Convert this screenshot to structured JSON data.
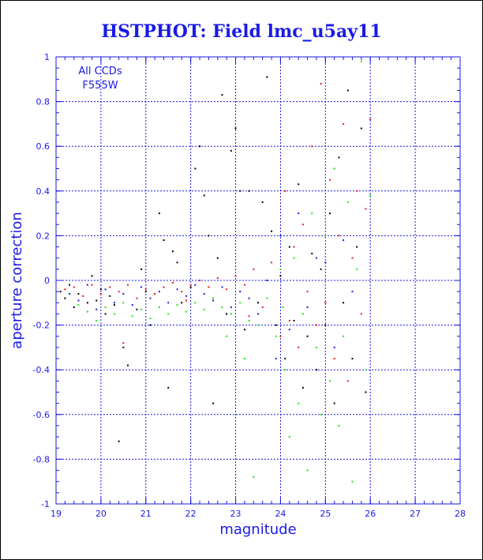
{
  "chart_data": {
    "type": "scatter",
    "title": "HSTPHOT: Field lmc_u5ay11",
    "xlabel": "magnitude",
    "ylabel": "aperture correction",
    "xlim": [
      19,
      28
    ],
    "ylim": [
      -1,
      1
    ],
    "x_ticks": [
      "19",
      "20",
      "21",
      "22",
      "23",
      "24",
      "25",
      "26",
      "27",
      "28"
    ],
    "y_ticks": [
      "-1",
      "-0.8",
      "-0.6",
      "-0.4",
      "-0.2",
      "0",
      "0.2",
      "0.4",
      "0.6",
      "0.8",
      "1"
    ],
    "grid": true,
    "annotation_lines": [
      "All CCDs",
      "F555W"
    ],
    "colors": {
      "frame": "#1a1ae6",
      "grid": "#1a1ae6",
      "text": "#1a1ae6"
    },
    "series": [
      {
        "color": "#000000",
        "points": [
          [
            19.1,
            -0.05
          ],
          [
            19.2,
            -0.08
          ],
          [
            19.3,
            -0.02
          ],
          [
            19.4,
            -0.12
          ],
          [
            19.5,
            -0.06
          ],
          [
            19.7,
            -0.1
          ],
          [
            19.8,
            0.02
          ],
          [
            19.9,
            -0.09
          ],
          [
            20.0,
            -0.04
          ],
          [
            20.1,
            -0.15
          ],
          [
            20.2,
            -0.07
          ],
          [
            20.3,
            -0.11
          ],
          [
            20.4,
            -0.72
          ],
          [
            20.5,
            -0.3
          ],
          [
            20.6,
            -0.38
          ],
          [
            20.8,
            -0.13
          ],
          [
            20.9,
            0.05
          ],
          [
            21.0,
            -0.05
          ],
          [
            21.1,
            -0.2
          ],
          [
            21.3,
            0.3
          ],
          [
            21.4,
            0.18
          ],
          [
            21.5,
            -0.48
          ],
          [
            21.6,
            0.13
          ],
          [
            21.7,
            0.08
          ],
          [
            21.8,
            -0.1
          ],
          [
            22.0,
            -0.03
          ],
          [
            22.1,
            0.5
          ],
          [
            22.2,
            0.6
          ],
          [
            22.3,
            0.38
          ],
          [
            22.4,
            0.2
          ],
          [
            22.5,
            -0.55
          ],
          [
            22.6,
            0.1
          ],
          [
            22.7,
            0.83
          ],
          [
            22.8,
            -0.15
          ],
          [
            22.9,
            0.58
          ],
          [
            23.0,
            0.68
          ],
          [
            23.1,
            0.4
          ],
          [
            23.2,
            -0.22
          ],
          [
            23.3,
            0.4
          ],
          [
            23.5,
            -0.1
          ],
          [
            23.6,
            0.35
          ],
          [
            23.7,
            0.91
          ],
          [
            23.8,
            0.22
          ],
          [
            23.9,
            -0.2
          ],
          [
            24.0,
            0.02
          ],
          [
            24.1,
            -0.35
          ],
          [
            24.2,
            0.15
          ],
          [
            24.3,
            -0.18
          ],
          [
            24.4,
            0.43
          ],
          [
            24.5,
            -0.48
          ],
          [
            24.6,
            -0.25
          ],
          [
            24.7,
            0.12
          ],
          [
            24.8,
            -0.4
          ],
          [
            24.9,
            0.05
          ],
          [
            25.0,
            -0.2
          ],
          [
            25.1,
            0.3
          ],
          [
            25.2,
            -0.55
          ],
          [
            25.3,
            0.55
          ],
          [
            25.4,
            -0.1
          ],
          [
            25.5,
            0.85
          ],
          [
            25.6,
            -0.35
          ],
          [
            25.7,
            0.15
          ],
          [
            25.8,
            0.68
          ],
          [
            25.9,
            -0.5
          ]
        ]
      },
      {
        "color": "#e61a1a",
        "points": [
          [
            19.2,
            -0.04
          ],
          [
            19.4,
            -0.03
          ],
          [
            19.6,
            -0.07
          ],
          [
            19.8,
            -0.02
          ],
          [
            20.0,
            -0.06
          ],
          [
            20.2,
            -0.03
          ],
          [
            20.4,
            -0.05
          ],
          [
            20.6,
            -0.02
          ],
          [
            20.8,
            -0.08
          ],
          [
            21.0,
            -0.04
          ],
          [
            21.2,
            -0.06
          ],
          [
            21.4,
            -0.03
          ],
          [
            21.6,
            -0.01
          ],
          [
            21.8,
            -0.05
          ],
          [
            22.0,
            -0.02
          ],
          [
            22.2,
            0.0
          ],
          [
            22.4,
            -0.03
          ],
          [
            22.6,
            0.01
          ],
          [
            22.8,
            -0.04
          ],
          [
            23.0,
            0.02
          ],
          [
            23.2,
            -0.02
          ],
          [
            23.4,
            0.05
          ],
          [
            23.6,
            -0.12
          ],
          [
            23.8,
            0.08
          ],
          [
            24.0,
            -0.25
          ],
          [
            24.1,
            0.4
          ],
          [
            24.2,
            -0.18
          ],
          [
            24.3,
            0.15
          ],
          [
            24.4,
            -0.3
          ],
          [
            24.5,
            0.25
          ],
          [
            24.6,
            -0.05
          ],
          [
            24.7,
            0.6
          ],
          [
            24.8,
            -0.2
          ],
          [
            24.9,
            0.88
          ],
          [
            25.0,
            -0.1
          ],
          [
            25.1,
            0.45
          ],
          [
            25.2,
            -0.35
          ],
          [
            25.3,
            0.2
          ],
          [
            25.4,
            0.7
          ],
          [
            25.5,
            -0.45
          ],
          [
            25.6,
            0.1
          ],
          [
            25.7,
            0.4
          ],
          [
            25.8,
            -0.15
          ],
          [
            25.9,
            0.32
          ],
          [
            26.0,
            0.72
          ],
          [
            20.5,
            -0.28
          ],
          [
            21.9,
            -0.09
          ],
          [
            23.3,
            -0.16
          ]
        ]
      },
      {
        "color": "#1a1ae6",
        "points": [
          [
            19.3,
            -0.06
          ],
          [
            19.5,
            -0.09
          ],
          [
            19.7,
            -0.02
          ],
          [
            19.9,
            -0.13
          ],
          [
            20.1,
            -0.04
          ],
          [
            20.3,
            -0.1
          ],
          [
            20.5,
            -0.06
          ],
          [
            20.7,
            -0.11
          ],
          [
            20.9,
            -0.03
          ],
          [
            21.1,
            -0.08
          ],
          [
            21.3,
            -0.05
          ],
          [
            21.5,
            -0.1
          ],
          [
            21.7,
            -0.04
          ],
          [
            21.9,
            -0.07
          ],
          [
            22.1,
            -0.02
          ],
          [
            22.3,
            -0.06
          ],
          [
            22.5,
            -0.09
          ],
          [
            22.7,
            -0.03
          ],
          [
            22.9,
            -0.12
          ],
          [
            23.1,
            -0.05
          ],
          [
            23.3,
            -0.08
          ],
          [
            23.5,
            -0.15
          ],
          [
            23.7,
            0.0
          ],
          [
            23.9,
            -0.35
          ],
          [
            24.0,
            0.2
          ],
          [
            24.2,
            -0.22
          ],
          [
            24.4,
            0.3
          ],
          [
            24.6,
            -0.12
          ],
          [
            24.8,
            0.1
          ],
          [
            25.0,
            0.08
          ],
          [
            25.2,
            -0.3
          ],
          [
            25.4,
            0.18
          ],
          [
            25.6,
            -0.05
          ]
        ]
      },
      {
        "color": "#1ae61a",
        "points": [
          [
            19.5,
            -0.11
          ],
          [
            19.7,
            -0.14
          ],
          [
            19.9,
            -0.18
          ],
          [
            20.1,
            -0.12
          ],
          [
            20.3,
            -0.15
          ],
          [
            20.5,
            -0.1
          ],
          [
            20.7,
            -0.16
          ],
          [
            20.9,
            -0.13
          ],
          [
            21.1,
            -0.17
          ],
          [
            21.3,
            -0.12
          ],
          [
            21.5,
            -0.15
          ],
          [
            21.7,
            -0.11
          ],
          [
            21.9,
            -0.14
          ],
          [
            22.1,
            -0.1
          ],
          [
            22.3,
            -0.13
          ],
          [
            22.5,
            -0.08
          ],
          [
            22.7,
            -0.12
          ],
          [
            22.9,
            -0.15
          ],
          [
            23.1,
            -0.1
          ],
          [
            23.3,
            -0.18
          ],
          [
            23.5,
            -0.2
          ],
          [
            23.7,
            -0.08
          ],
          [
            23.9,
            -0.25
          ],
          [
            24.0,
            0.05
          ],
          [
            24.1,
            -0.4
          ],
          [
            24.2,
            -0.7
          ],
          [
            24.3,
            0.1
          ],
          [
            24.4,
            -0.55
          ],
          [
            24.5,
            -0.15
          ],
          [
            24.6,
            -0.85
          ],
          [
            24.7,
            0.3
          ],
          [
            24.8,
            -0.3
          ],
          [
            24.9,
            -0.6
          ],
          [
            25.0,
            0.2
          ],
          [
            25.1,
            -0.45
          ],
          [
            25.2,
            0.5
          ],
          [
            25.3,
            -0.65
          ],
          [
            25.4,
            -0.25
          ],
          [
            25.5,
            0.35
          ],
          [
            25.6,
            -0.9
          ],
          [
            25.7,
            0.05
          ],
          [
            25.8,
            0.98
          ],
          [
            25.9,
            -0.4
          ],
          [
            26.0,
            0.38
          ],
          [
            23.4,
            -0.88
          ],
          [
            23.2,
            -0.35
          ],
          [
            22.8,
            -0.25
          ],
          [
            24.05,
            -0.12
          ]
        ]
      }
    ]
  }
}
